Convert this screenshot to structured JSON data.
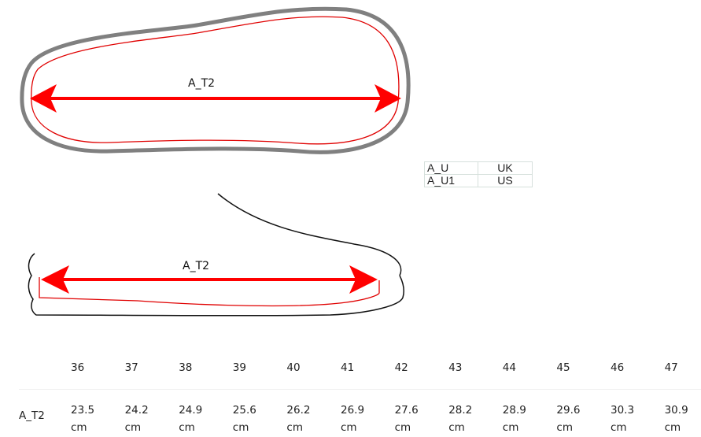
{
  "top_view": {
    "measure_label": "A_T2"
  },
  "side_view": {
    "measure_label": "A_T2"
  },
  "colors": {
    "arrow": "#ff0000",
    "outline": "#808080",
    "inner": "#e00000"
  },
  "codes_table": [
    {
      "key": "A_U",
      "value": "UK"
    },
    {
      "key": "A_U1",
      "value": "US"
    }
  ],
  "size_table": {
    "row_label": "A_T2",
    "sizes": [
      "36",
      "37",
      "38",
      "39",
      "40",
      "41",
      "42",
      "43",
      "44",
      "45",
      "46",
      "47"
    ],
    "lengths": [
      "23.5",
      "24.2",
      "24.9",
      "25.6",
      "26.2",
      "26.9",
      "27.6",
      "28.2",
      "28.9",
      "29.6",
      "30.3",
      "30.9"
    ],
    "unit": "cm"
  }
}
